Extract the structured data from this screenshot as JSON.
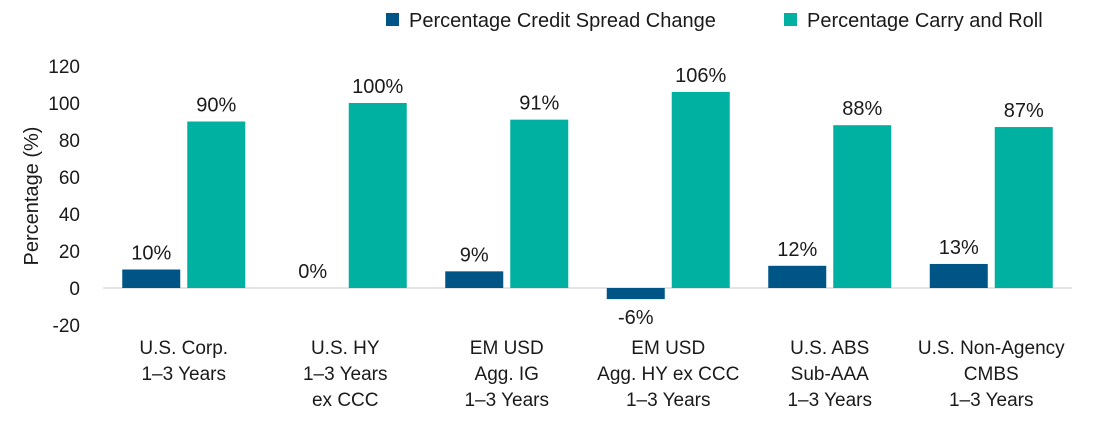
{
  "chart_data": {
    "type": "bar",
    "ylabel": "Percentage (%)",
    "ylim": [
      -20,
      120
    ],
    "yticks": [
      -20,
      0,
      20,
      40,
      60,
      80,
      100,
      120
    ],
    "grid": false,
    "legend_position": "top-right",
    "categories": [
      [
        "U.S. Corp.",
        "1–3 Years"
      ],
      [
        "U.S. HY",
        "1–3 Years",
        "ex CCC"
      ],
      [
        "EM USD",
        "Agg. IG",
        "1–3 Years"
      ],
      [
        "EM USD",
        "Agg. HY ex CCC",
        "1–3 Years"
      ],
      [
        "U.S. ABS",
        "Sub-AAA",
        "1–3 Years"
      ],
      [
        "U.S. Non-Agency",
        "CMBS",
        "1–3 Years"
      ]
    ],
    "series": [
      {
        "name": "Percentage Credit Spread Change",
        "color": "#005587",
        "values": [
          10,
          0,
          9,
          -6,
          12,
          13
        ],
        "labels": [
          "10%",
          "0%",
          "9%",
          "-6%",
          "12%",
          "13%"
        ]
      },
      {
        "name": "Percentage Carry and Roll",
        "color": "#00B0A0",
        "values": [
          90,
          100,
          91,
          106,
          88,
          87
        ],
        "labels": [
          "90%",
          "100%",
          "91%",
          "106%",
          "88%",
          "87%"
        ]
      }
    ]
  }
}
